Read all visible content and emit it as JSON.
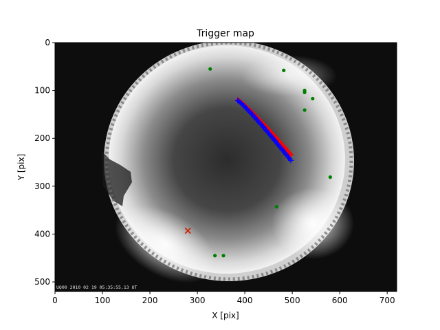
{
  "chart_data": {
    "type": "scatter",
    "title": "Trigger map",
    "xlabel": "X [pix]",
    "ylabel": "Y [pix]",
    "xlim": [
      0,
      720
    ],
    "ylim": [
      520,
      0
    ],
    "y_inverted": true,
    "x_ticks": [
      0,
      100,
      200,
      300,
      400,
      500,
      600,
      700
    ],
    "y_ticks": [
      0,
      100,
      200,
      300,
      400,
      500
    ],
    "grid": false,
    "background": "all-sky camera fisheye image (grayscale)",
    "overlay_text": "UQ00 2010 02 19 05:35:55.13 UT",
    "series": [
      {
        "marker": "circle",
        "color": "#008000",
        "points": [
          {
            "x": 327,
            "y": 55
          },
          {
            "x": 482,
            "y": 58
          },
          {
            "x": 526,
            "y": 100
          },
          {
            "x": 526,
            "y": 104
          },
          {
            "x": 543,
            "y": 117
          },
          {
            "x": 526,
            "y": 141
          },
          {
            "x": 580,
            "y": 281
          },
          {
            "x": 467,
            "y": 343
          },
          {
            "x": 337,
            "y": 445
          },
          {
            "x": 355,
            "y": 445
          }
        ]
      },
      {
        "marker": "plus",
        "color": "#ff0000",
        "x_start": 385,
        "x_end": 497,
        "y_start": 120,
        "y_end": 235,
        "count": 64
      },
      {
        "marker": "plus",
        "color": "#0000ff",
        "x_start": 385,
        "x_end": 497,
        "y_start": 121,
        "y_end": 246,
        "count": 44
      },
      {
        "marker": "x",
        "color": "#cc2200",
        "points": [
          {
            "x": 280,
            "y": 393
          }
        ]
      }
    ]
  }
}
